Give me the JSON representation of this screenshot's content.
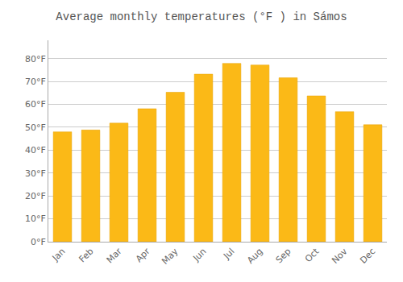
{
  "chart_data": {
    "type": "bar",
    "title": "Average monthly temperatures (°F ) in Sámos",
    "categories": [
      "Jan",
      "Feb",
      "Mar",
      "Apr",
      "May",
      "Jun",
      "Jul",
      "Aug",
      "Sep",
      "Oct",
      "Nov",
      "Dec"
    ],
    "values": [
      48.0,
      48.8,
      51.8,
      58.1,
      65.3,
      73.2,
      77.9,
      77.2,
      71.6,
      63.7,
      56.8,
      51.1
    ],
    "color": "#FBB917",
    "ylim": [
      0,
      88
    ],
    "yticks": [
      {
        "value": 0,
        "label": "0°F"
      },
      {
        "value": 10,
        "label": "10°F"
      },
      {
        "value": 20,
        "label": "20°F"
      },
      {
        "value": 30,
        "label": "30°F"
      },
      {
        "value": 40,
        "label": "40°F"
      },
      {
        "value": 50,
        "label": "50°F"
      },
      {
        "value": 60,
        "label": "60°F"
      },
      {
        "value": 70,
        "label": "70°F"
      },
      {
        "value": 80,
        "label": "80°F"
      }
    ],
    "grid": true
  }
}
